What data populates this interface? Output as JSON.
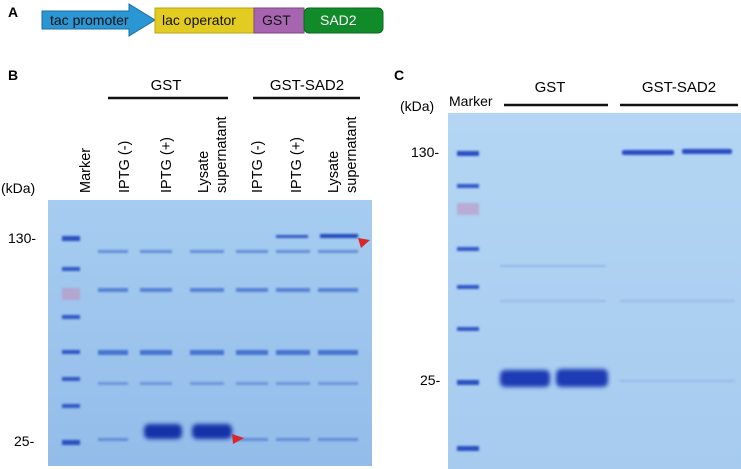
{
  "panel_a": {
    "label": "A",
    "segments": [
      {
        "label": "tac promoter",
        "color": "#2a96d4"
      },
      {
        "label": "lac operator",
        "color": "#e2cc22"
      },
      {
        "label": "GST",
        "color": "#a765b0"
      },
      {
        "label": "SAD2",
        "color": "#118a2a"
      }
    ]
  },
  "panel_b": {
    "label": "B",
    "group_gst": "GST",
    "group_sad2": "GST-SAD2",
    "lanes": [
      {
        "line1": "Marker",
        "line2": ""
      },
      {
        "line1": "IPTG (-)",
        "line2": ""
      },
      {
        "line1": "IPTG (+)",
        "line2": ""
      },
      {
        "line1": "Lysate",
        "line2": "supernatant"
      },
      {
        "line1": "IPTG (-)",
        "line2": ""
      },
      {
        "line1": "IPTG (+)",
        "line2": ""
      },
      {
        "line1": "Lysate",
        "line2": "supernatant"
      }
    ],
    "unit": "(kDa)",
    "mw_markers": [
      "130-",
      "25-"
    ]
  },
  "panel_c": {
    "label": "C",
    "unit": "(kDa)",
    "marker_label": "Marker",
    "group_gst": "GST",
    "group_sad2": "GST-SAD2",
    "mw_markers": [
      "130-",
      "25-"
    ]
  },
  "colors": {
    "gel_bg": "#9cc3ec",
    "band": "#1f3fb8",
    "arrow": "#d8262a"
  }
}
